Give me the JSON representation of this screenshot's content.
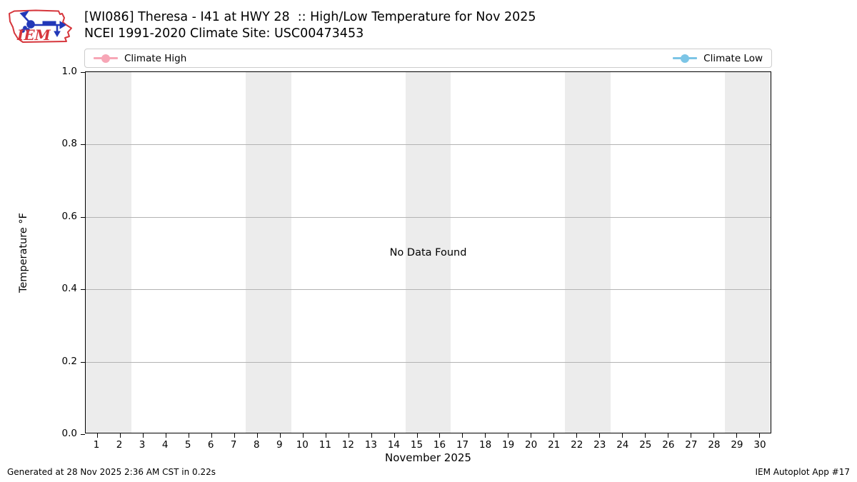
{
  "logo": {
    "text": "IEM",
    "outline_color": "#d6363c",
    "vane_color": "#2238b8"
  },
  "header": {
    "title_line1": "[WI086] Theresa - I41 at HWY 28  :: High/Low Temperature for Nov 2025",
    "title_line2": "NCEI 1991-2020 Climate Site: USC00473453"
  },
  "legend": {
    "high_label": "Climate High",
    "low_label": "Climate Low",
    "high_color": "#f7a6b6",
    "low_color": "#7cc5e6"
  },
  "chart_data": {
    "type": "line",
    "title": "[WI086] Theresa - I41 at HWY 28  :: High/Low Temperature for Nov 2025",
    "subtitle": "NCEI 1991-2020 Climate Site: USC00473453",
    "xlabel": "November 2025",
    "ylabel": "Temperature °F",
    "xlim": [
      0.5,
      30.5
    ],
    "ylim": [
      0.0,
      1.0
    ],
    "x_ticks": [
      1,
      2,
      3,
      4,
      5,
      6,
      7,
      8,
      9,
      10,
      11,
      12,
      13,
      14,
      15,
      16,
      17,
      18,
      19,
      20,
      21,
      22,
      23,
      24,
      25,
      26,
      27,
      28,
      29,
      30
    ],
    "y_ticks": [
      0.0,
      0.2,
      0.4,
      0.6,
      0.8,
      1.0
    ],
    "grid": "horizontal",
    "legend_position": "top-bar",
    "series": [
      {
        "name": "Climate High",
        "color": "#f7a6b6",
        "values": []
      },
      {
        "name": "Climate Low",
        "color": "#7cc5e6",
        "values": []
      }
    ],
    "no_data_message": "No Data Found",
    "weekend_band_color": "#ececec",
    "weekend_bands_days": [
      [
        1,
        2
      ],
      [
        8,
        9
      ],
      [
        15,
        16
      ],
      [
        22,
        23
      ],
      [
        29,
        30
      ]
    ]
  },
  "footer": {
    "generated": "Generated at 28 Nov 2025 2:36 AM CST in 0.22s",
    "app": "IEM Autoplot App #17"
  }
}
